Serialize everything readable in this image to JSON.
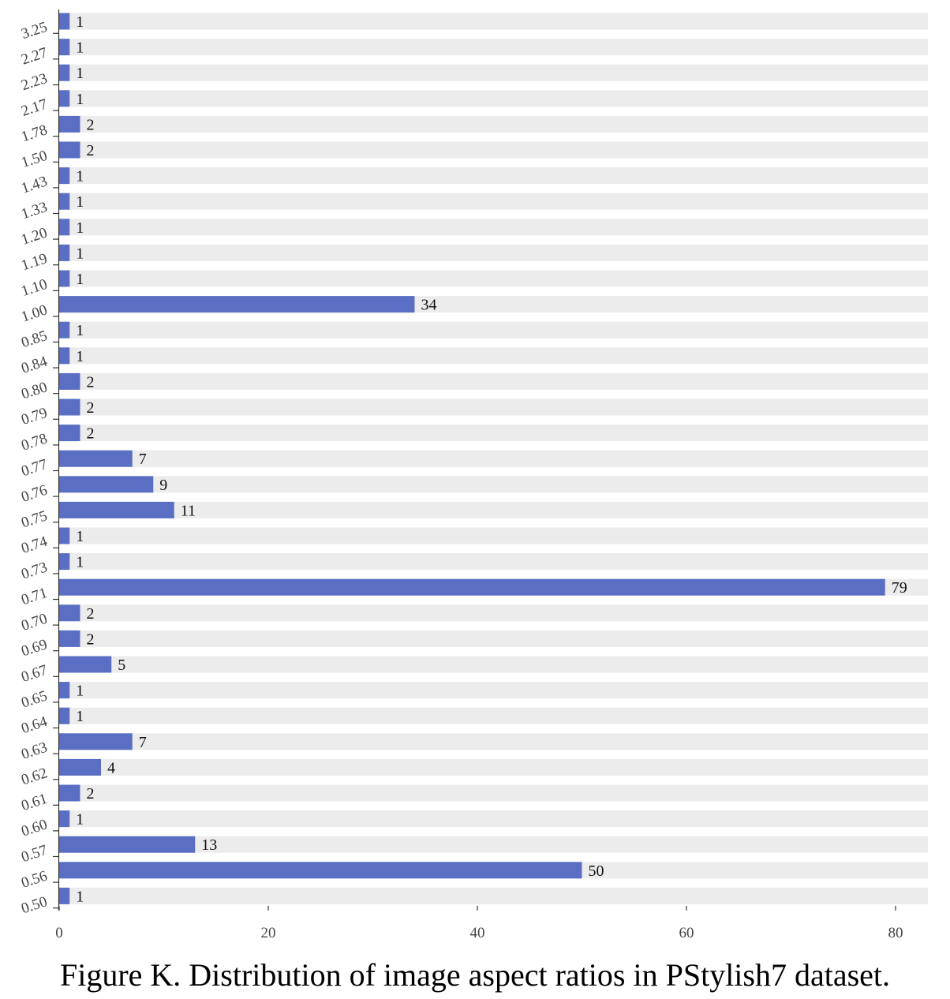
{
  "caption": "Figure K. Distribution of image aspect ratios in PStylish7 dataset.",
  "colors": {
    "bar": "#5a6fc4",
    "track": "#ececec",
    "axis": "#333333",
    "label": "#111111",
    "tick_label": "#444444"
  },
  "chart_data": {
    "type": "bar",
    "orientation": "horizontal",
    "title": "",
    "xlabel": "",
    "ylabel": "",
    "categories": [
      "3.25",
      "2.27",
      "2.23",
      "2.17",
      "1.78",
      "1.50",
      "1.43",
      "1.33",
      "1.20",
      "1.19",
      "1.10",
      "1.00",
      "0.85",
      "0.84",
      "0.80",
      "0.79",
      "0.78",
      "0.77",
      "0.76",
      "0.75",
      "0.74",
      "0.73",
      "0.71",
      "0.70",
      "0.69",
      "0.67",
      "0.65",
      "0.64",
      "0.63",
      "0.62",
      "0.61",
      "0.60",
      "0.57",
      "0.56",
      "0.50"
    ],
    "values": [
      1,
      1,
      1,
      1,
      2,
      2,
      1,
      1,
      1,
      1,
      1,
      34,
      1,
      1,
      2,
      2,
      2,
      7,
      9,
      11,
      1,
      1,
      79,
      2,
      2,
      5,
      1,
      1,
      7,
      4,
      2,
      1,
      13,
      50,
      1
    ],
    "xlim": [
      0,
      82
    ],
    "xticks": [
      0,
      20,
      40,
      60,
      80
    ],
    "grid": false,
    "legend": "none",
    "data_labels": true
  }
}
